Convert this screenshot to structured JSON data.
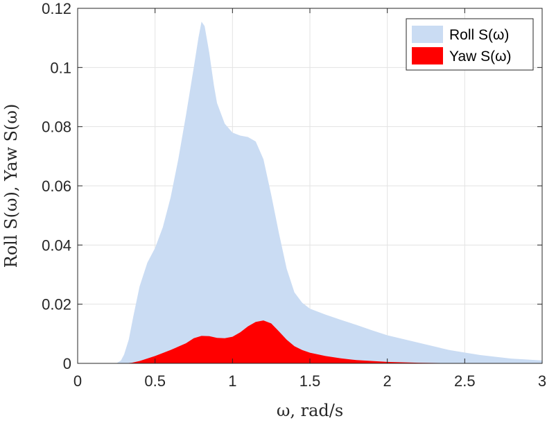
{
  "chart_data": {
    "type": "area",
    "xlabel": "ω, rad/s",
    "ylabel": "Roll S(ω), Yaw S(ω)",
    "xlim": [
      0,
      3
    ],
    "ylim": [
      0,
      0.12
    ],
    "xticks": [
      0,
      0.5,
      1,
      1.5,
      2,
      2.5,
      3
    ],
    "xtick_labels": [
      "0",
      "0.5",
      "1",
      "1.5",
      "2",
      "2.5",
      "3"
    ],
    "yticks": [
      0,
      0.02,
      0.04,
      0.06,
      0.08,
      0.1,
      0.12
    ],
    "ytick_labels": [
      "0",
      "0.02",
      "0.04",
      "0.06",
      "0.08",
      "0.1",
      "0.12"
    ],
    "grid": true,
    "legend_position": "top-right",
    "series": [
      {
        "name": "Roll S(ω)",
        "color": "#cadcf3",
        "x": [
          0,
          0.25,
          0.28,
          0.3,
          0.33,
          0.36,
          0.4,
          0.45,
          0.5,
          0.55,
          0.6,
          0.65,
          0.7,
          0.75,
          0.78,
          0.8,
          0.82,
          0.85,
          0.88,
          0.9,
          0.95,
          1.0,
          1.05,
          1.1,
          1.15,
          1.2,
          1.25,
          1.3,
          1.35,
          1.4,
          1.45,
          1.5,
          1.6,
          1.7,
          1.8,
          1.9,
          2.0,
          2.2,
          2.4,
          2.6,
          2.8,
          3.0
        ],
        "y": [
          0,
          0,
          0.001,
          0.003,
          0.008,
          0.016,
          0.026,
          0.034,
          0.039,
          0.046,
          0.056,
          0.069,
          0.084,
          0.1,
          0.11,
          0.1155,
          0.114,
          0.105,
          0.094,
          0.088,
          0.081,
          0.078,
          0.077,
          0.0765,
          0.075,
          0.069,
          0.057,
          0.044,
          0.032,
          0.024,
          0.0205,
          0.0185,
          0.0165,
          0.0147,
          0.013,
          0.0112,
          0.0095,
          0.007,
          0.0045,
          0.0028,
          0.0016,
          0.001
        ]
      },
      {
        "name": "Yaw S(ω)",
        "color": "#ff0000",
        "x": [
          0,
          0.3,
          0.35,
          0.4,
          0.5,
          0.6,
          0.7,
          0.75,
          0.8,
          0.85,
          0.9,
          0.95,
          1.0,
          1.05,
          1.1,
          1.15,
          1.2,
          1.25,
          1.3,
          1.35,
          1.4,
          1.45,
          1.5,
          1.6,
          1.7,
          1.8,
          2.0,
          2.2,
          2.4,
          2.6,
          2.8,
          3.0
        ],
        "y": [
          0,
          0,
          0.0002,
          0.0008,
          0.0025,
          0.0045,
          0.0068,
          0.0085,
          0.0093,
          0.0092,
          0.0086,
          0.0085,
          0.009,
          0.0105,
          0.0125,
          0.014,
          0.0145,
          0.0135,
          0.0108,
          0.008,
          0.0058,
          0.0045,
          0.0036,
          0.0025,
          0.0017,
          0.0011,
          0.0005,
          0.0002,
          0.0001,
          5e-05,
          0,
          0
        ]
      }
    ]
  }
}
